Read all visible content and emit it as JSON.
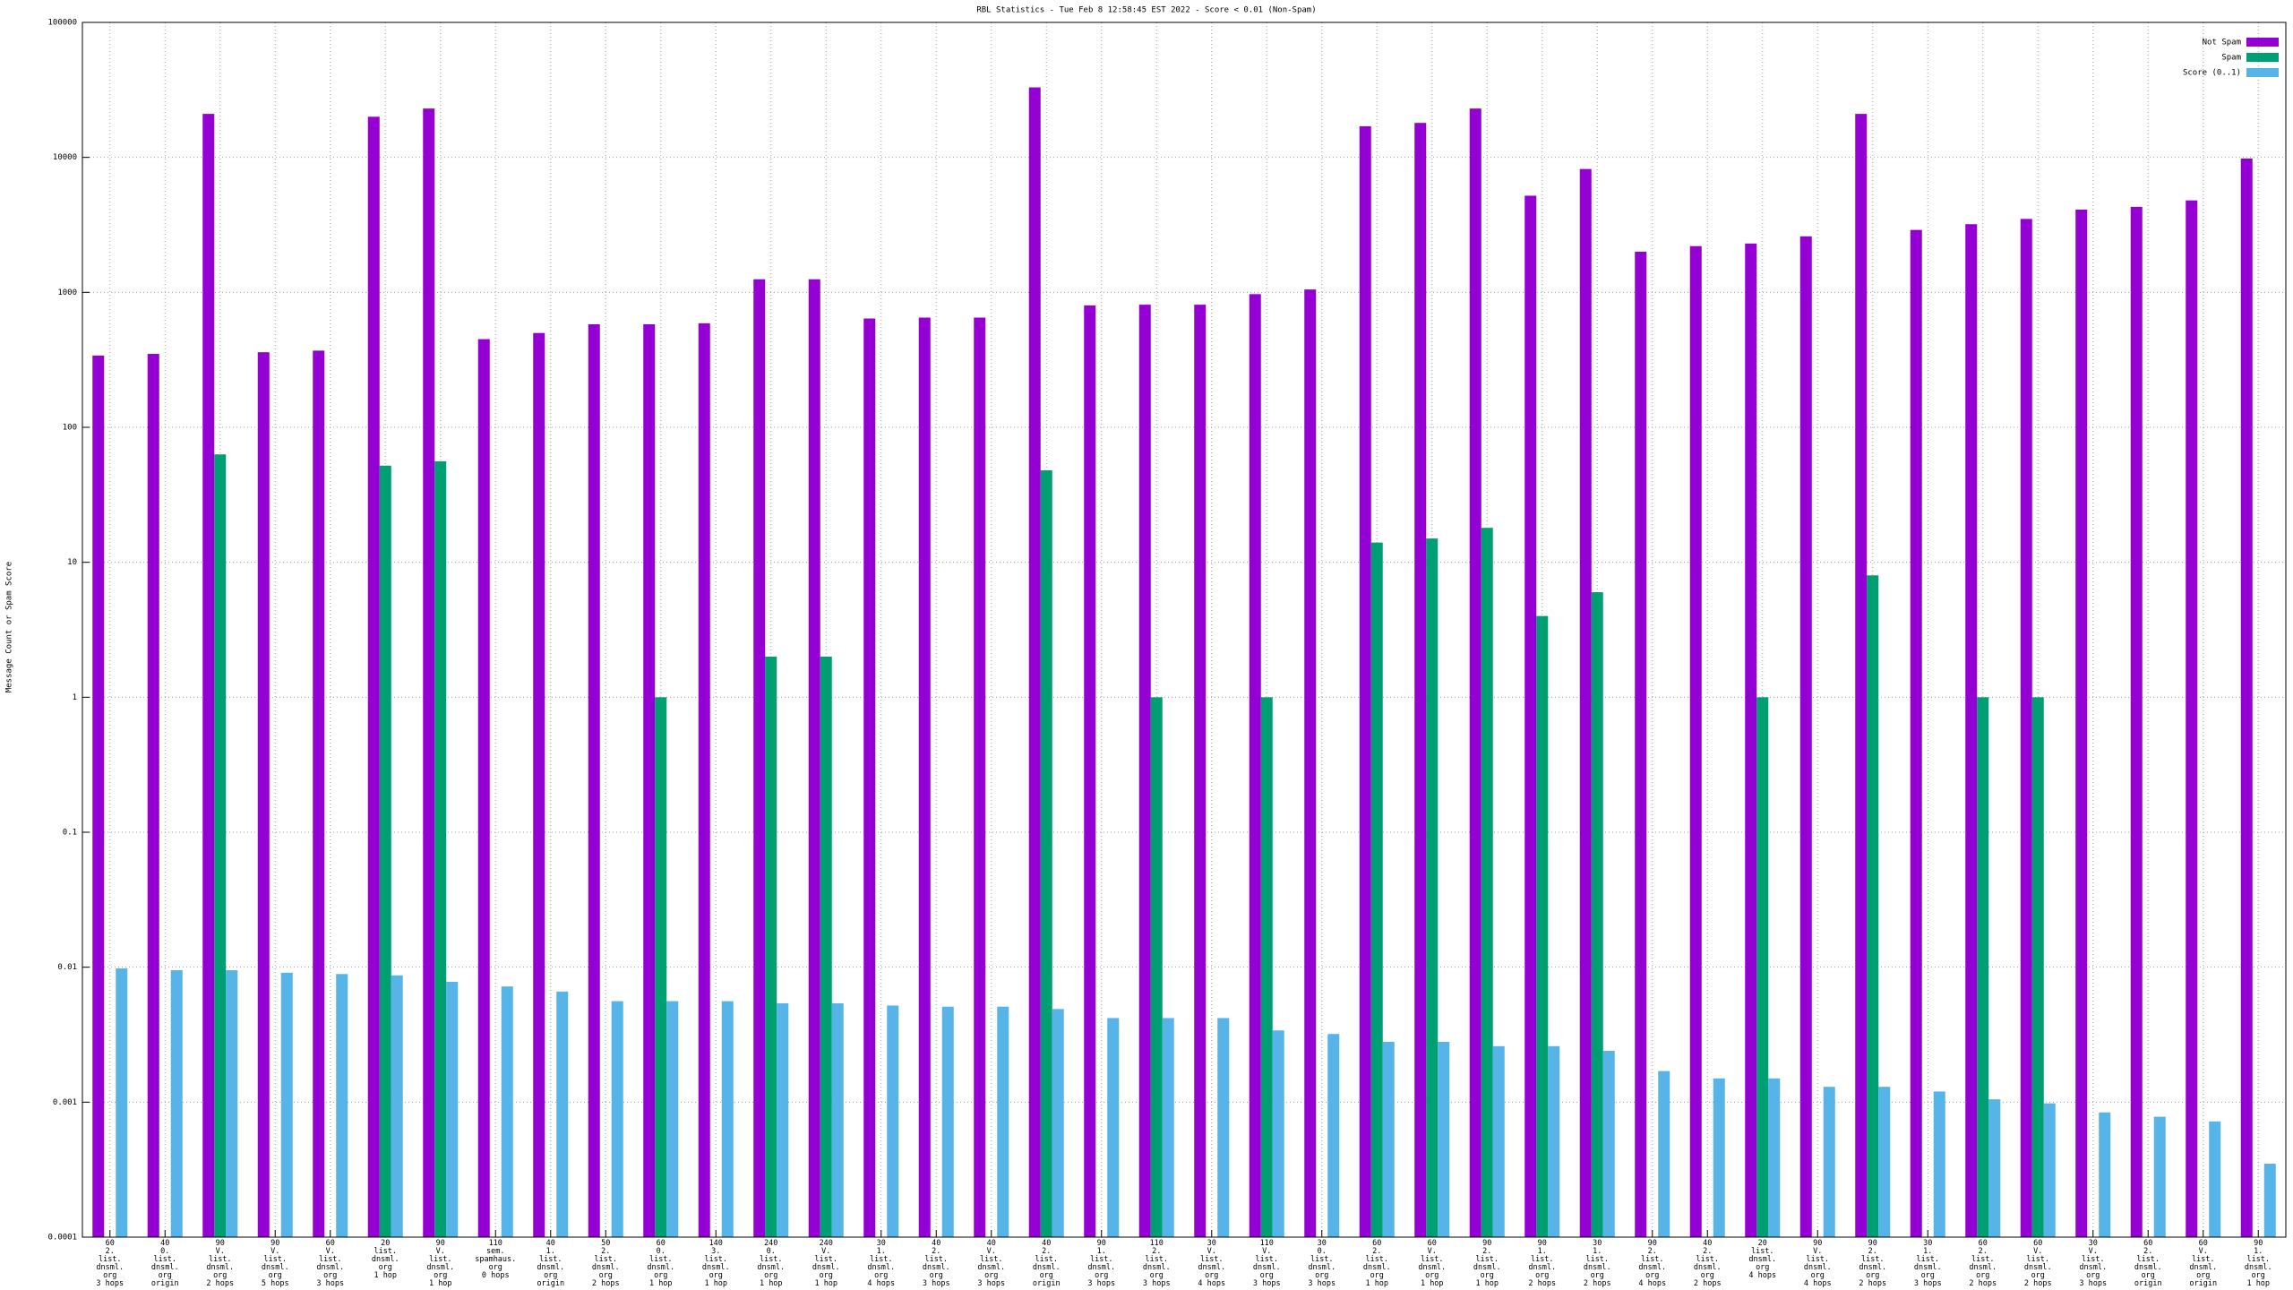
{
  "chart_data": {
    "type": "bar",
    "title": "RBL Statistics - Tue Feb  8 12:58:45 EST 2022 - Score < 0.01 (Non-Spam)",
    "y_label": "Message Count or Spam Score",
    "yscale": "log",
    "grid": true,
    "legend": "upper right",
    "ylim": [
      0.0001,
      100000
    ],
    "yticks": [
      0.0001,
      0.001,
      0.01,
      0.1,
      1,
      10,
      100,
      1000,
      10000,
      100000
    ],
    "categories": [
      "60\n2.\nlist.\ndnsml.\norg\n3 hops",
      "40\n0.\nlist.\ndnsml.\norg\norigin",
      "90\nV.\nlist.\ndnsml.\norg\n2 hops",
      "90\nV.\nlist.\ndnsml.\norg\n5 hops",
      "60\nV.\nlist.\ndnsml.\norg\n3 hops",
      "20\nlist.\ndnsml.\norg\n1 hop",
      "90\nV.\nlist.\ndnsml.\norg\n1 hop",
      "110\nsem.\nspamhaus.\norg\n0 hops",
      "40\n1.\nlist.\ndnsml.\norg\norigin",
      "50\n2.\nlist.\ndnsml.\norg\n2 hops",
      "60\n0.\nlist.\ndnsml.\norg\n1 hop",
      "140\n3.\nlist.\ndnsml.\norg\n1 hop",
      "240\n0.\nlist.\ndnsml.\norg\n1 hop",
      "240\nV.\nlist.\ndnsml.\norg\n1 hop",
      "30\n1.\nlist.\ndnsml.\norg\n4 hops",
      "40\n2.\nlist.\ndnsml.\norg\n3 hops",
      "40\nV.\nlist.\ndnsml.\norg\n3 hops",
      "40\n2.\nlist.\ndnsml.\norg\norigin",
      "90\n1.\nlist.\ndnsml.\norg\n3 hops",
      "110\n2.\nlist.\ndnsml.\norg\n3 hops",
      "30\nV.\nlist.\ndnsml.\norg\n4 hops",
      "110\nV.\nlist.\ndnsml.\norg\n3 hops",
      "30\n0.\nlist.\ndnsml.\norg\n3 hops",
      "60\n2.\nlist.\ndnsml.\norg\n1 hop",
      "60\nV.\nlist.\ndnsml.\norg\n1 hop",
      "90\n2.\nlist.\ndnsml.\norg\n1 hop",
      "90\n1.\nlist.\ndnsml.\norg\n2 hops",
      "30\n1.\nlist.\ndnsml.\norg\n2 hops",
      "90\n2.\nlist.\ndnsml.\norg\n4 hops",
      "40\n2.\nlist.\ndnsml.\norg\n2 hops",
      "20\nlist.\ndnsml.\norg\n4 hops",
      "90\nV.\nlist.\ndnsml.\norg\n4 hops",
      "90\n2.\nlist.\ndnsml.\norg\n2 hops",
      "30\n1.\nlist.\ndnsml.\norg\n3 hops",
      "60\n2.\nlist.\ndnsml.\norg\n2 hops",
      "60\nV.\nlist.\ndnsml.\norg\n2 hops",
      "30\nV.\nlist.\ndnsml.\norg\n3 hops",
      "60\n2.\nlist.\ndnsml.\norg\norigin",
      "60\nV.\nlist.\ndnsml.\norg\norigin",
      "90\n1.\nlist.\ndnsml.\norg\n1 hop"
    ],
    "series": [
      {
        "name": "Not Spam",
        "color": "#9400d3",
        "values": [
          340,
          350,
          21000,
          360,
          370,
          20000,
          23000,
          450,
          500,
          580,
          580,
          590,
          1250,
          1250,
          640,
          650,
          650,
          33000,
          800,
          810,
          810,
          970,
          1050,
          17000,
          18000,
          23000,
          5200,
          8200,
          2000,
          2200,
          2300,
          2600,
          21000,
          2900,
          3200,
          3500,
          4100,
          4300,
          4800,
          9800
        ]
      },
      {
        "name": "Spam",
        "color": "#009e73",
        "values": [
          null,
          null,
          63,
          null,
          null,
          52,
          56,
          null,
          null,
          null,
          1,
          null,
          2,
          2,
          null,
          null,
          null,
          48,
          null,
          1,
          null,
          1,
          null,
          14,
          15,
          18,
          4,
          6,
          null,
          null,
          1,
          null,
          8,
          null,
          1,
          1,
          null,
          null,
          null,
          null
        ]
      },
      {
        "name": "Score (0..1)",
        "color": "#56b4e9",
        "values": [
          0.0098,
          0.0095,
          0.0095,
          0.0091,
          0.0089,
          0.0087,
          0.0078,
          0.0072,
          0.0066,
          0.0056,
          0.0056,
          0.0056,
          0.0054,
          0.0054,
          0.0052,
          0.0051,
          0.0051,
          0.0049,
          0.0042,
          0.0042,
          0.0042,
          0.0034,
          0.0032,
          0.0028,
          0.0028,
          0.0026,
          0.0026,
          0.0024,
          0.0017,
          0.0015,
          0.0015,
          0.0013,
          0.0013,
          0.0012,
          0.00105,
          0.00098,
          0.00084,
          0.00078,
          0.00072,
          0.00035
        ]
      }
    ]
  }
}
